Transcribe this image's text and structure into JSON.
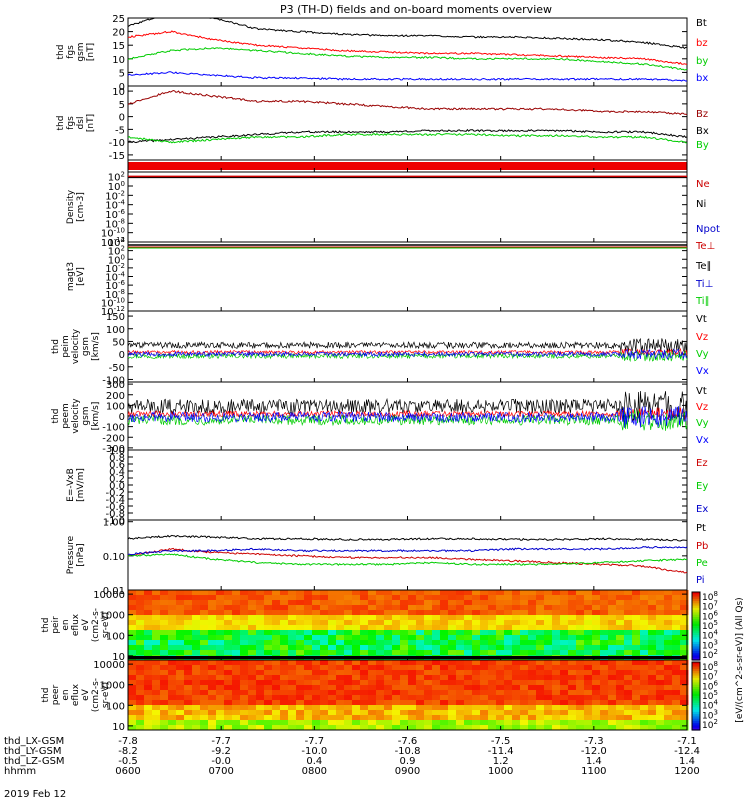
{
  "chart_data": {
    "type": "line",
    "title": "P3 (TH-D) fields and on-board moments overview",
    "date": "2019 Feb 12",
    "x_axis": {
      "rows": [
        {
          "label": "thd_LX-GSM",
          "values": [
            "-7.8",
            "-7.7",
            "-7.7",
            "-7.6",
            "-7.5",
            "-7.3",
            "-7.1"
          ]
        },
        {
          "label": "thd_LY-GSM",
          "values": [
            "-8.2",
            "-9.2",
            "-10.0",
            "-10.8",
            "-11.4",
            "-12.0",
            "-12.4"
          ]
        },
        {
          "label": "thd_LZ-GSM",
          "values": [
            "-0.5",
            "-0.0",
            "0.4",
            "0.9",
            "1.2",
            "1.4",
            "1.4"
          ]
        },
        {
          "label": "hhmm",
          "values": [
            "0600",
            "0700",
            "0800",
            "0900",
            "1000",
            "1100",
            "1200"
          ]
        }
      ]
    },
    "panels": [
      {
        "id": "fgs_gsm",
        "ylabel": [
          "thd",
          "fgs",
          "gsm",
          "[nT]"
        ],
        "ylim": [
          0,
          25
        ],
        "yticks": [
          "25",
          "20",
          "15",
          "10",
          "5",
          "0"
        ],
        "tick_values": [
          25,
          20,
          15,
          10,
          5,
          0
        ],
        "legend": [
          {
            "name": "Bt",
            "color": "#000000"
          },
          {
            "name": "bz",
            "color": "#ff0000"
          },
          {
            "name": "by",
            "color": "#00cc00"
          },
          {
            "name": "bx",
            "color": "#0000ff"
          }
        ],
        "series": [
          {
            "name": "Bt",
            "color": "#000000",
            "values": [
              22,
              27,
              25,
              21,
              20,
              19,
              18.5,
              18.5,
              18,
              18,
              17.5,
              17,
              16,
              14
            ]
          },
          {
            "name": "bz",
            "color": "#ff0000",
            "values": [
              18,
              20,
              17,
              15,
              14,
              13,
              12.5,
              12,
              12,
              11.5,
              11,
              10.5,
              10,
              8
            ]
          },
          {
            "name": "by",
            "color": "#00cc00",
            "values": [
              10,
              13,
              14,
              13,
              12,
              11,
              10.5,
              10.5,
              10,
              10,
              10,
              9,
              8,
              6
            ]
          },
          {
            "name": "bx",
            "color": "#0000ff",
            "values": [
              4,
              5,
              4,
              3,
              3,
              2.5,
              2.5,
              2.5,
              2.5,
              2.5,
              2.5,
              2.5,
              2.5,
              2
            ]
          }
        ]
      },
      {
        "id": "fgs_dsl",
        "ylabel": [
          "thd",
          "fgs",
          "dsl",
          "[nT]"
        ],
        "ylim": [
          -17,
          12
        ],
        "yticks": [
          "10",
          "5",
          "0",
          "-5",
          "-10",
          "-15"
        ],
        "tick_values": [
          10,
          5,
          0,
          -5,
          -10,
          -15
        ],
        "legend": [
          {
            "name": "Bz",
            "color": "#990000"
          },
          {
            "name": "Bx",
            "color": "#000000"
          },
          {
            "name": "By",
            "color": "#00cc00"
          }
        ],
        "series": [
          {
            "name": "Bz",
            "color": "#990000",
            "values": [
              5,
              10,
              8,
              6,
              6,
              5,
              4,
              3,
              3,
              3,
              3,
              2,
              2,
              1
            ]
          },
          {
            "name": "Bx",
            "color": "#000000",
            "values": [
              -10,
              -9,
              -8,
              -7,
              -6,
              -6,
              -6,
              -5.5,
              -5.5,
              -5.5,
              -5.5,
              -6,
              -6,
              -8
            ]
          },
          {
            "name": "By",
            "color": "#00cc00",
            "values": [
              -8,
              -10,
              -9,
              -8,
              -8,
              -7,
              -7,
              -7,
              -7,
              -7.5,
              -7.5,
              -8,
              -8,
              -10
            ]
          }
        ]
      },
      {
        "id": "density",
        "ylabel": [
          "Density",
          "[cm-3]"
        ],
        "ylim": [
          -12,
          3
        ],
        "yticks": [
          "10^2",
          "10^0",
          "10^-2",
          "10^-4",
          "10^-6",
          "10^-8",
          "10^-10",
          "10^-12"
        ],
        "tick_values": [
          2,
          0,
          -2,
          -4,
          -6,
          -8,
          -10,
          -12
        ],
        "log": true,
        "legend": [
          {
            "name": "Ne",
            "color": "#cc0000"
          },
          {
            "name": "Ni",
            "color": "#000000"
          },
          {
            "name": "Npot",
            "color": "#0000cc"
          }
        ]
      },
      {
        "id": "temperature",
        "ylabel": [
          "magt3",
          "[eV]"
        ],
        "ylim": [
          -12,
          4
        ],
        "yticks": [
          "10^4",
          "10^2",
          "10^0",
          "10^-2",
          "10^-4",
          "10^-6",
          "10^-8",
          "10^-10",
          "10^-12"
        ],
        "tick_values": [
          4,
          2,
          0,
          -2,
          -4,
          -6,
          -8,
          -10,
          -12
        ],
        "log": true,
        "legend": [
          {
            "name": "Te⊥",
            "color": "#cc0000"
          },
          {
            "name": "Te∥",
            "color": "#000000"
          },
          {
            "name": "Ti⊥",
            "color": "#0000cc"
          },
          {
            "name": "Ti∥",
            "color": "#00cc00"
          }
        ]
      },
      {
        "id": "peim_velocity",
        "ylabel": [
          "thd",
          "peim",
          "velocity",
          "gsm",
          "[km/s]"
        ],
        "ylim": [
          -110,
          170
        ],
        "yticks": [
          "150",
          "100",
          "50",
          "0",
          "-50",
          "-100"
        ],
        "tick_values": [
          150,
          100,
          50,
          0,
          -50,
          -100
        ],
        "legend": [
          {
            "name": "Vt",
            "color": "#000000"
          },
          {
            "name": "Vz",
            "color": "#ff0000"
          },
          {
            "name": "Vy",
            "color": "#00cc00"
          },
          {
            "name": "Vx",
            "color": "#0000ff"
          }
        ]
      },
      {
        "id": "peem_velocity",
        "ylabel": [
          "thd",
          "peem",
          "velocity",
          "gsm",
          "[km/s]"
        ],
        "ylim": [
          -320,
          320
        ],
        "yticks": [
          "300",
          "200",
          "100",
          "0",
          "-100",
          "-200",
          "-300"
        ],
        "tick_values": [
          300,
          200,
          100,
          0,
          -100,
          -200,
          -300
        ],
        "legend": [
          {
            "name": "Vt",
            "color": "#000000"
          },
          {
            "name": "Vz",
            "color": "#ff0000"
          },
          {
            "name": "Vy",
            "color": "#00cc00"
          },
          {
            "name": "Vx",
            "color": "#0000ff"
          }
        ]
      },
      {
        "id": "efield",
        "ylabel": [
          "E=-VxB",
          "[mV/m]"
        ],
        "ylim": [
          -1,
          1
        ],
        "yticks": [
          "1.0",
          "0.8",
          "0.6",
          "0.4",
          "0.2",
          "0.0",
          "-0.2",
          "-0.4",
          "-0.6",
          "-0.8",
          "-1.0"
        ],
        "tick_values": [
          1,
          0.8,
          0.6,
          0.4,
          0.2,
          0,
          -0.2,
          -0.4,
          -0.6,
          -0.8,
          -1
        ],
        "legend": [
          {
            "name": "Ez",
            "color": "#cc0000"
          },
          {
            "name": "Ey",
            "color": "#00cc00"
          },
          {
            "name": "Ex",
            "color": "#0000cc"
          }
        ]
      },
      {
        "id": "pressure",
        "ylabel": [
          "Pressure",
          "[nPa]"
        ],
        "ylim": [
          -2,
          0.05
        ],
        "yticks": [
          "1.00",
          "0.10",
          "0.01"
        ],
        "tick_values": [
          0,
          -1,
          -2
        ],
        "log": true,
        "legend": [
          {
            "name": "Pt",
            "color": "#000000"
          },
          {
            "name": "Pb",
            "color": "#cc0000"
          },
          {
            "name": "Pe",
            "color": "#00cc00"
          },
          {
            "name": "Pi",
            "color": "#0000cc"
          }
        ],
        "series": [
          {
            "name": "Pt",
            "color": "#000000",
            "values": [
              -0.5,
              -0.42,
              -0.45,
              -0.5,
              -0.5,
              -0.52,
              -0.52,
              -0.5,
              -0.5,
              -0.52,
              -0.52,
              -0.5,
              -0.52,
              -0.55
            ]
          },
          {
            "name": "Pb",
            "color": "#cc0000",
            "values": [
              -1.0,
              -0.8,
              -0.9,
              -0.95,
              -1.0,
              -1.05,
              -1.05,
              -1.05,
              -1.1,
              -1.15,
              -1.2,
              -1.25,
              -1.3,
              -1.5
            ]
          },
          {
            "name": "Pe",
            "color": "#00cc00",
            "values": [
              -1.0,
              -0.95,
              -1.1,
              -1.2,
              -1.25,
              -1.25,
              -1.25,
              -1.2,
              -1.25,
              -1.25,
              -1.25,
              -1.2,
              -1.15,
              -1.1
            ]
          },
          {
            "name": "Pi",
            "color": "#0000cc",
            "values": [
              -0.95,
              -0.85,
              -0.85,
              -0.8,
              -0.85,
              -0.85,
              -0.85,
              -0.85,
              -0.85,
              -0.8,
              -0.8,
              -0.8,
              -0.75,
              -0.75
            ]
          }
        ]
      },
      {
        "id": "peir_spec",
        "ylabel": [
          "thd",
          "peir",
          "en",
          "eflux",
          "eV",
          "(cm2-s-",
          "sr-eV)"
        ],
        "ylim": [
          0.8,
          4.2
        ],
        "yticks": [
          "10000",
          "1000",
          "100",
          "10"
        ],
        "tick_values": [
          4,
          3,
          2,
          1
        ],
        "log": true
      },
      {
        "id": "peer_spec",
        "ylabel": [
          "thd",
          "peer",
          "en",
          "eflux",
          "eV",
          "(cm2-s-",
          "sr-eV)"
        ],
        "ylim": [
          0.8,
          4.2
        ],
        "yticks": [
          "10000",
          "1000",
          "100",
          "10"
        ],
        "tick_values": [
          4,
          3,
          2,
          1
        ],
        "log": true
      }
    ],
    "colorbar": {
      "label": "[eV/(cm^2-s-sr-eV)] (All Qs)",
      "ticks_top": [
        "10^8",
        "10^7",
        "10^6",
        "10^5",
        "10^4",
        "10^3",
        "10^2"
      ],
      "ticks_bottom": [
        "10^8",
        "10^7",
        "10^6",
        "10^5",
        "10^4",
        "10^3",
        "10^2"
      ]
    }
  }
}
